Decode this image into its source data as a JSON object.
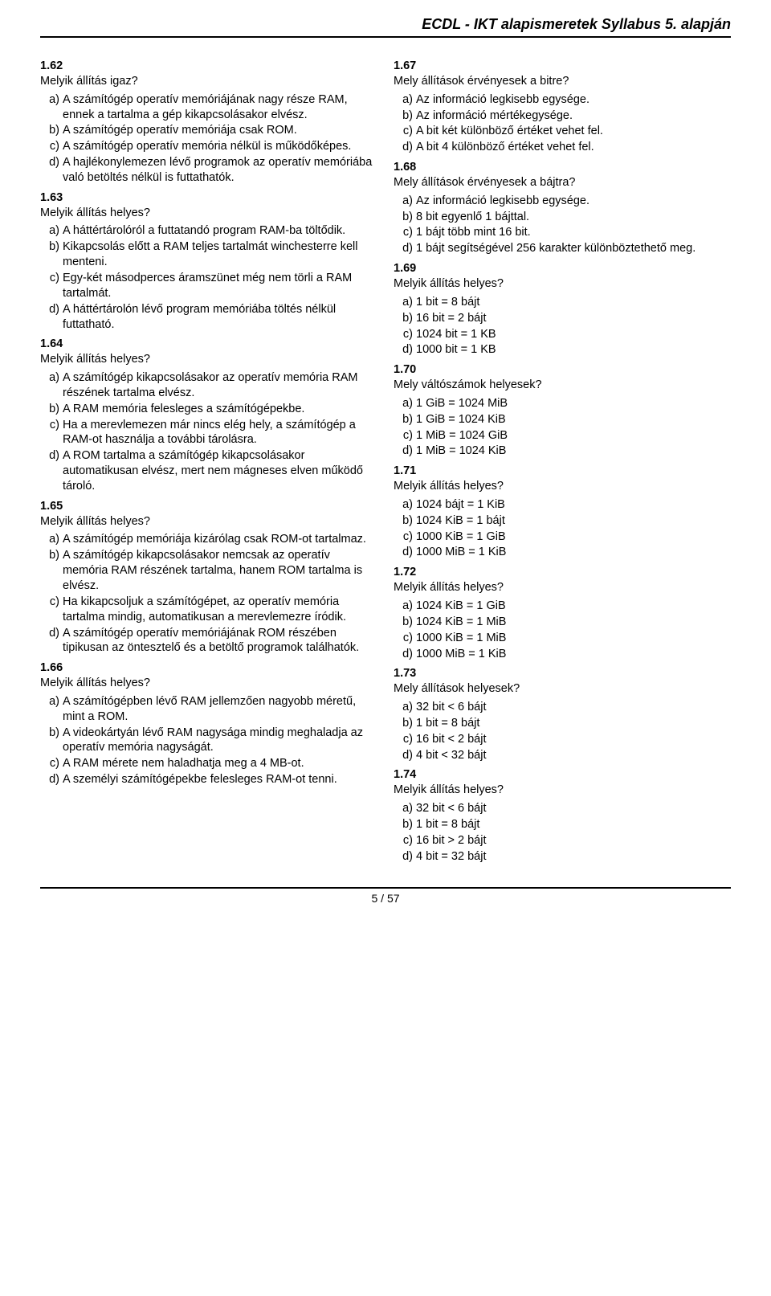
{
  "header": "ECDL - IKT alapismeretek Syllabus 5. alapján",
  "footer": "5 / 57",
  "left": {
    "q162": {
      "num": "1.62",
      "text": "Melyik állítás igaz?",
      "a": "A számítógép operatív memóriájának nagy része RAM, ennek a tartalma a gép kikapcsolásakor elvész.",
      "b": "A számítógép operatív memóriája csak ROM.",
      "c": "A számítógép operatív memória nélkül is működőképes.",
      "d": "A hajlékonylemezen lévő programok az operatív memóriába való betöltés nélkül is futtathatók."
    },
    "q163": {
      "num": "1.63",
      "text": "Melyik állítás helyes?",
      "a": "A háttértárolóról a futtatandó program RAM-ba töltődik.",
      "b": "Kikapcsolás előtt a RAM teljes tartalmát winchesterre kell menteni.",
      "c": "Egy-két másodperces áramszünet még nem törli a RAM tartalmát.",
      "d": "A háttértárolón lévő program memóriába töltés nélkül futtatható."
    },
    "q164": {
      "num": "1.64",
      "text": "Melyik állítás helyes?",
      "a": "A számítógép kikapcsolásakor az operatív memória RAM részének tartalma elvész.",
      "b": "A RAM memória felesleges a számítógépekbe.",
      "c": "Ha a merevlemezen már nincs elég hely, a számítógép a RAM-ot használja a további tárolásra.",
      "d": "A ROM tartalma a számítógép kikapcsolásakor automatikusan elvész, mert nem mágneses elven működő tároló."
    },
    "q165": {
      "num": "1.65",
      "text": "Melyik állítás helyes?",
      "a": "A számítógép memóriája kizárólag csak ROM-ot tartalmaz.",
      "b": "A számítógép kikapcsolásakor nemcsak az operatív memória RAM részének tartalma, hanem ROM tartalma is elvész.",
      "c": "Ha kikapcsoljuk a számítógépet, az operatív memória tartalma mindig, automatikusan a merevlemezre íródik.",
      "d": "A számítógép operatív memóriájának ROM részében tipikusan az öntesztelő és a betöltő programok találhatók."
    },
    "q166": {
      "num": "1.66",
      "text": "Melyik állítás helyes?",
      "a": "A számítógépben lévő RAM jellemzően nagyobb méretű, mint a ROM.",
      "b": "A videokártyán lévő RAM nagysága mindig meghaladja az operatív memória nagyságát.",
      "c": "A RAM mérete nem haladhatja meg a 4 MB-ot.",
      "d": "A személyi számítógépekbe felesleges RAM-ot tenni."
    }
  },
  "right": {
    "q167": {
      "num": "1.67",
      "text": "Mely állítások érvényesek a bitre?",
      "a": "Az információ legkisebb egysége.",
      "b": "Az információ mértékegysége.",
      "c": "A bit két különböző értéket vehet fel.",
      "d": "A bit 4 különböző értéket vehet fel."
    },
    "q168": {
      "num": "1.68",
      "text": "Mely állítások érvényesek a bájtra?",
      "a": "Az információ legkisebb egysége.",
      "b": "8 bit egyenlő 1 bájttal.",
      "c": "1 bájt több mint 16 bit.",
      "d": "1 bájt segítségével 256 karakter különböztethető meg."
    },
    "q169": {
      "num": "1.69",
      "text": "Melyik állítás helyes?",
      "a": "1 bit = 8 bájt",
      "b": "16 bit = 2 bájt",
      "c": "1024 bit = 1 KB",
      "d": "1000 bit = 1 KB"
    },
    "q170": {
      "num": "1.70",
      "text": "Mely váltószámok helyesek?",
      "a": "1 GiB = 1024 MiB",
      "b": "1 GiB = 1024 KiB",
      "c": "1 MiB = 1024 GiB",
      "d": "1 MiB = 1024 KiB"
    },
    "q171": {
      "num": "1.71",
      "text": "Melyik állítás helyes?",
      "a": "1024 bájt = 1 KiB",
      "b": "1024 KiB = 1 bájt",
      "c": "1000 KiB = 1 GiB",
      "d": "1000 MiB = 1 KiB"
    },
    "q172": {
      "num": "1.72",
      "text": "Melyik állítás helyes?",
      "a": "1024 KiB = 1 GiB",
      "b": "1024 KiB = 1 MiB",
      "c": "1000 KiB = 1 MiB",
      "d": "1000 MiB = 1 KiB"
    },
    "q173": {
      "num": "1.73",
      "text": "Mely állítások helyesek?",
      "a": "32 bit < 6 bájt",
      "b": "1 bit = 8 bájt",
      "c": "16 bit < 2 bájt",
      "d": "4 bit < 32 bájt"
    },
    "q174": {
      "num": "1.74",
      "text": "Melyik állítás helyes?",
      "a": "32 bit < 6 bájt",
      "b": "1 bit = 8 bájt",
      "c": "16 bit > 2 bájt",
      "d": "4 bit = 32 bájt"
    }
  }
}
